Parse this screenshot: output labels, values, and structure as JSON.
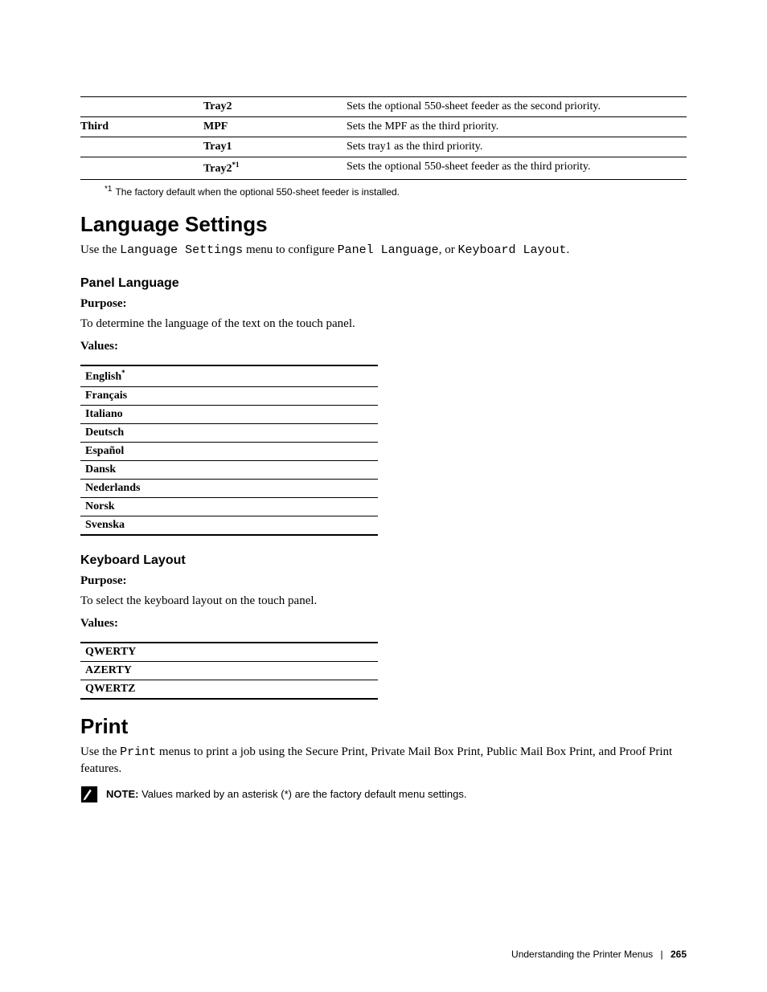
{
  "top_table": {
    "rows": [
      {
        "c1": "",
        "c2": "Tray2",
        "sup": "",
        "c3": "Sets the optional 550-sheet feeder as the second priority."
      },
      {
        "c1": "Third",
        "c2": "MPF",
        "sup": "",
        "c3": "Sets the MPF as the third priority."
      },
      {
        "c1": "",
        "c2": "Tray1",
        "sup": "",
        "c3": "Sets tray1 as the third priority."
      },
      {
        "c1": "",
        "c2": "Tray2",
        "sup": "*1",
        "c3": "Sets the optional 550-sheet feeder as the third priority."
      }
    ],
    "footnote_mark": "*1",
    "footnote_text": "The factory default when the optional 550-sheet feeder is installed."
  },
  "lang_settings": {
    "heading": "Language Settings",
    "intro_pre": "Use the ",
    "intro_m1": "Language Settings",
    "intro_mid": " menu to configure ",
    "intro_m2": "Panel Language",
    "intro_or": ", or ",
    "intro_m3": "Keyboard Layout",
    "intro_end": "."
  },
  "panel_language": {
    "heading": "Panel Language",
    "purpose_label": "Purpose:",
    "purpose_text": "To determine the language of the text on the touch panel.",
    "values_label": "Values:",
    "rows": [
      {
        "label": "English",
        "sup": "*"
      },
      {
        "label": "Français",
        "sup": ""
      },
      {
        "label": "Italiano",
        "sup": ""
      },
      {
        "label": "Deutsch",
        "sup": ""
      },
      {
        "label": "Español",
        "sup": ""
      },
      {
        "label": "Dansk",
        "sup": ""
      },
      {
        "label": "Nederlands",
        "sup": ""
      },
      {
        "label": "Norsk",
        "sup": ""
      },
      {
        "label": "Svenska",
        "sup": ""
      }
    ]
  },
  "keyboard_layout": {
    "heading": "Keyboard Layout",
    "purpose_label": "Purpose:",
    "purpose_text": "To select the keyboard layout on the touch panel.",
    "values_label": "Values:",
    "rows": [
      {
        "label": "QWERTY"
      },
      {
        "label": "AZERTY"
      },
      {
        "label": "QWERTZ"
      }
    ]
  },
  "print": {
    "heading": "Print",
    "intro_pre": "Use the ",
    "intro_m1": "Print",
    "intro_rest": " menus to print a job using the Secure Print, Private Mail Box Print, Public Mail Box Print, and Proof Print features."
  },
  "note": {
    "label": "NOTE:",
    "text": " Values marked by an asterisk (*) are the factory default menu settings."
  },
  "footer": {
    "title": "Understanding the Printer Menus",
    "page": "265"
  }
}
